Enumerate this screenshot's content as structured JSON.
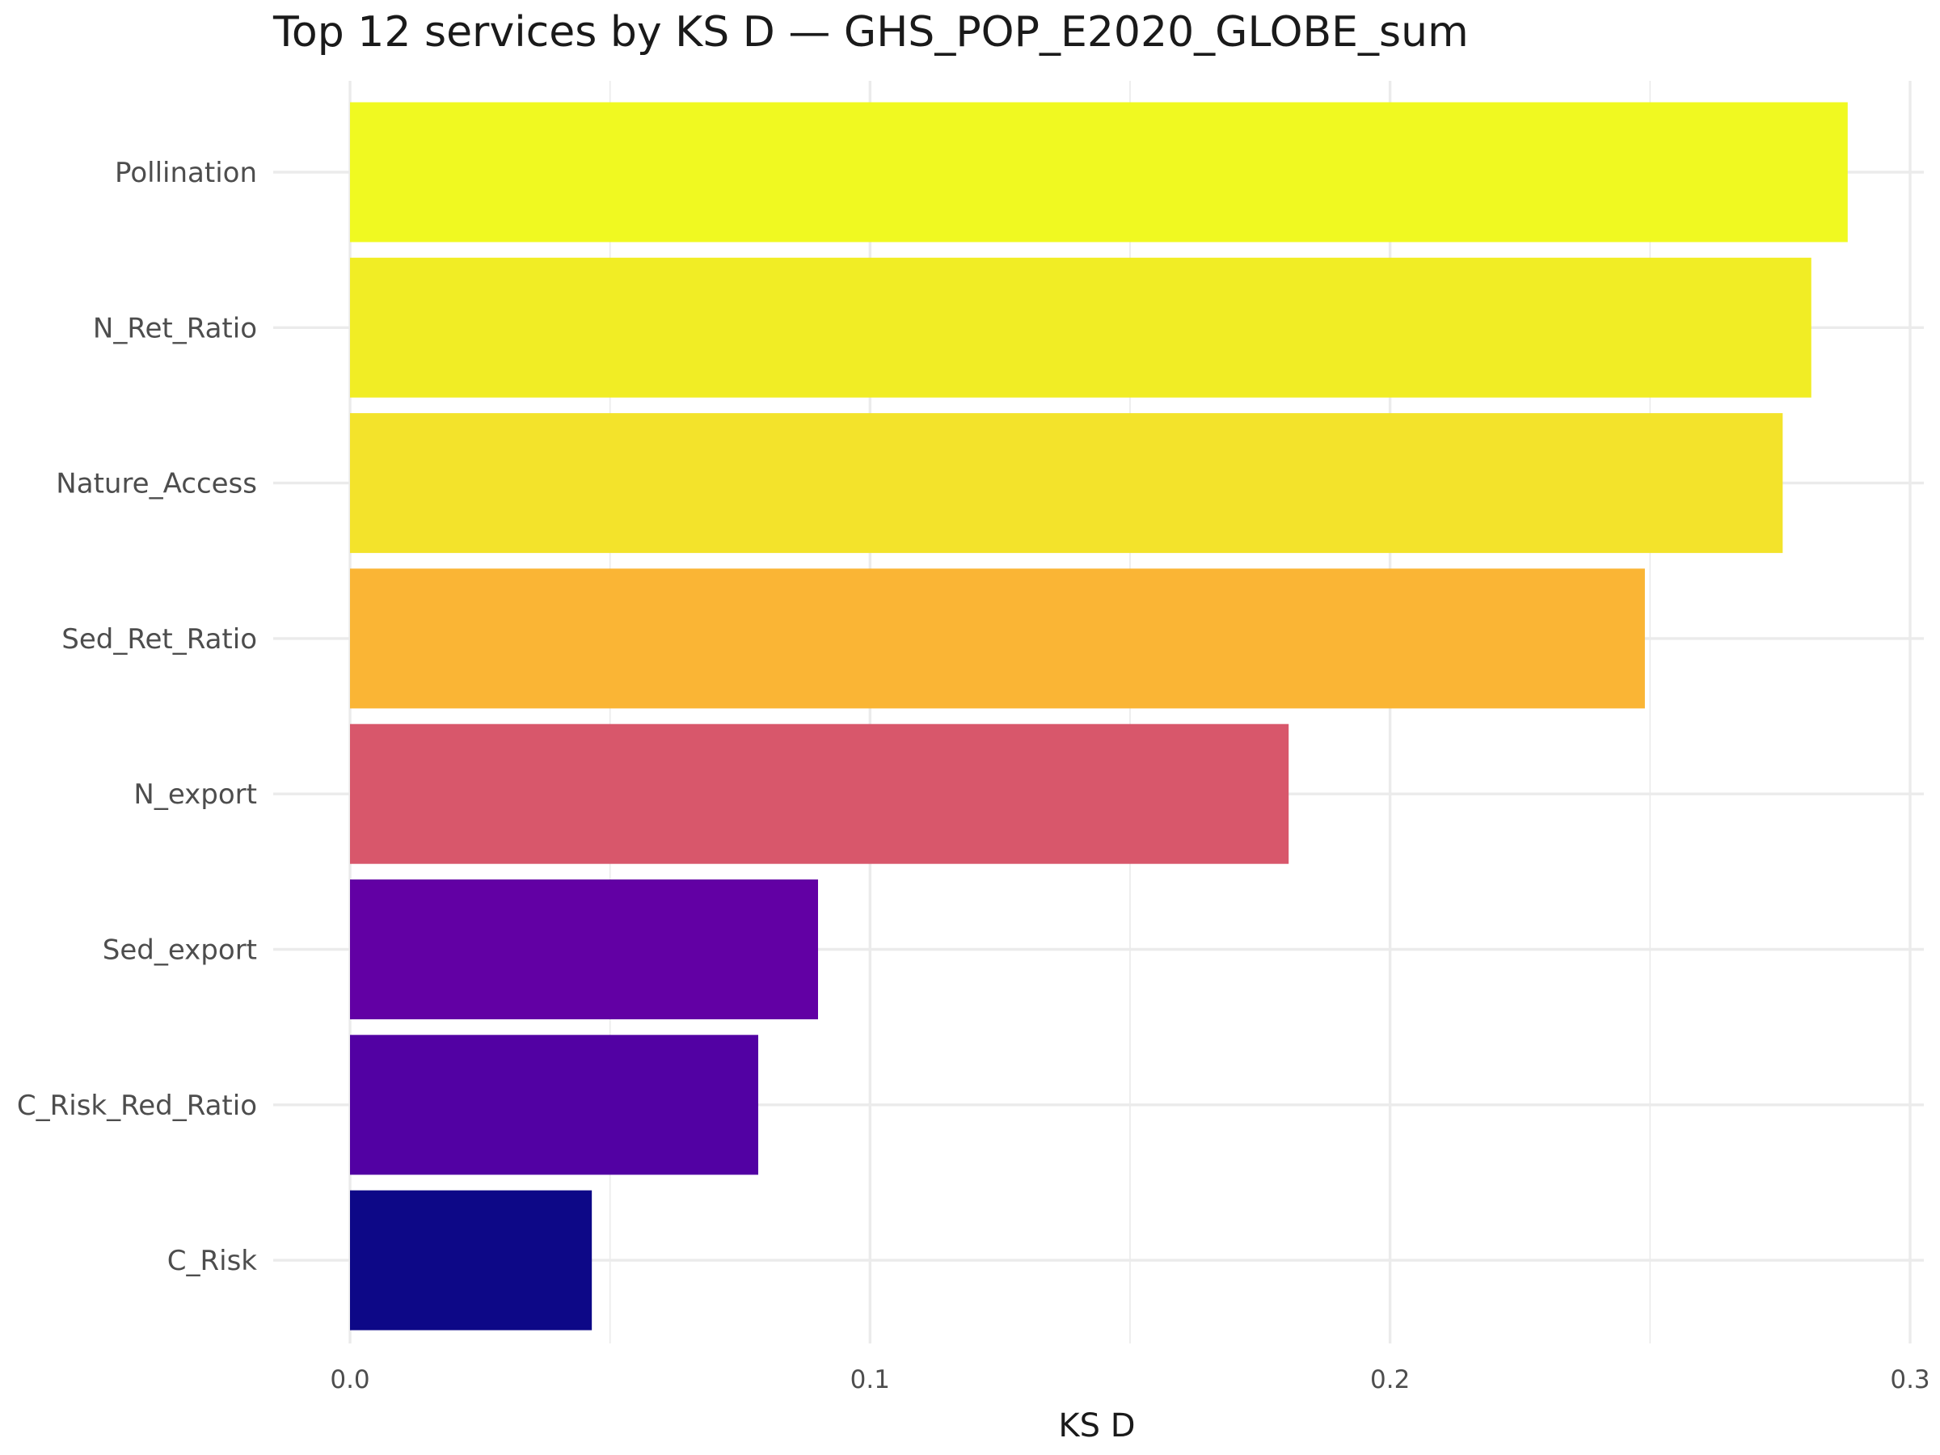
{
  "chart_data": {
    "type": "bar",
    "orientation": "horizontal",
    "title": "Top 12 services by KS D — GHS_POP_E2020_GLOBE_sum",
    "xlabel": "KS D",
    "ylabel": "",
    "xlim": [
      0,
      0.3
    ],
    "x_ticks": [
      0.0,
      0.1,
      0.2,
      0.3
    ],
    "x_tick_labels": [
      "0.0",
      "0.1",
      "0.2",
      "0.3"
    ],
    "grid": true,
    "legend": "none",
    "categories": [
      "Pollination",
      "N_Ret_Ratio",
      "Nature_Access",
      "Sed_Ret_Ratio",
      "N_export",
      "Sed_export",
      "C_Risk_Red_Ratio",
      "C_Risk"
    ],
    "values": [
      0.288,
      0.281,
      0.2755,
      0.249,
      0.1805,
      0.09,
      0.0785,
      0.0465
    ],
    "colors": [
      "#f0f921",
      "#f1ed25",
      "#f3e32b",
      "#fab535",
      "#d8576b",
      "#6200a4",
      "#5201a3",
      "#0d0887"
    ]
  }
}
